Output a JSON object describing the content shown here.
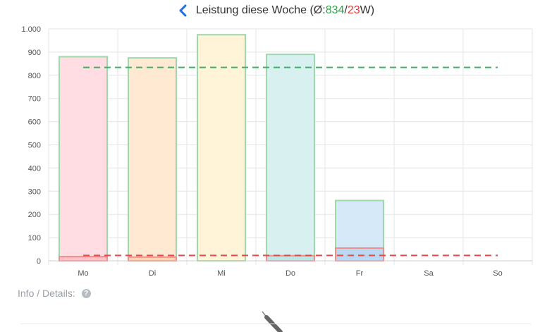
{
  "header": {
    "back_icon": "chevron-left-icon",
    "title_prefix": "Leistung diese Woche (Ø:",
    "avg_value": "834",
    "separator": "/",
    "low_value": "23",
    "title_suffix": "W)"
  },
  "info": {
    "label": "Info / Details:",
    "help_icon": "question-circle-icon",
    "help_glyph": "?"
  },
  "chart_data": {
    "type": "bar",
    "categories": [
      "Mo",
      "Di",
      "Mi",
      "Do",
      "Fr",
      "Sa",
      "So"
    ],
    "ylim": [
      0,
      1000
    ],
    "yticks": [
      0,
      100,
      200,
      300,
      400,
      500,
      600,
      700,
      800,
      900,
      1000
    ],
    "ytick_labels": [
      "0",
      "100",
      "200",
      "300",
      "400",
      "500",
      "600",
      "700",
      "800",
      "900",
      "1.000"
    ],
    "grid": true,
    "series": [
      {
        "values": [
          880,
          875,
          975,
          890,
          260,
          0,
          0
        ],
        "fill_colors": [
          "#ffdde2",
          "#ffe9d3",
          "#fff3d8",
          "#d8f0f0",
          "#d6e9f8",
          "#eeeeee",
          "#eeeeee"
        ],
        "border_color": "#9ed8ab"
      },
      {
        "values": [
          18,
          16,
          0,
          22,
          55,
          0,
          0
        ],
        "fill_colors": [
          "#ffc2c9",
          "#ffd5b0",
          "#fff0c8",
          "#bfe6e6",
          "#b9d8f2",
          "#eeeeee",
          "#eeeeee"
        ],
        "border_color": "#f08d8d"
      }
    ],
    "reference_lines": [
      {
        "value": 834,
        "color": "#3cb064"
      },
      {
        "value": 23,
        "color": "#e54848"
      }
    ]
  }
}
